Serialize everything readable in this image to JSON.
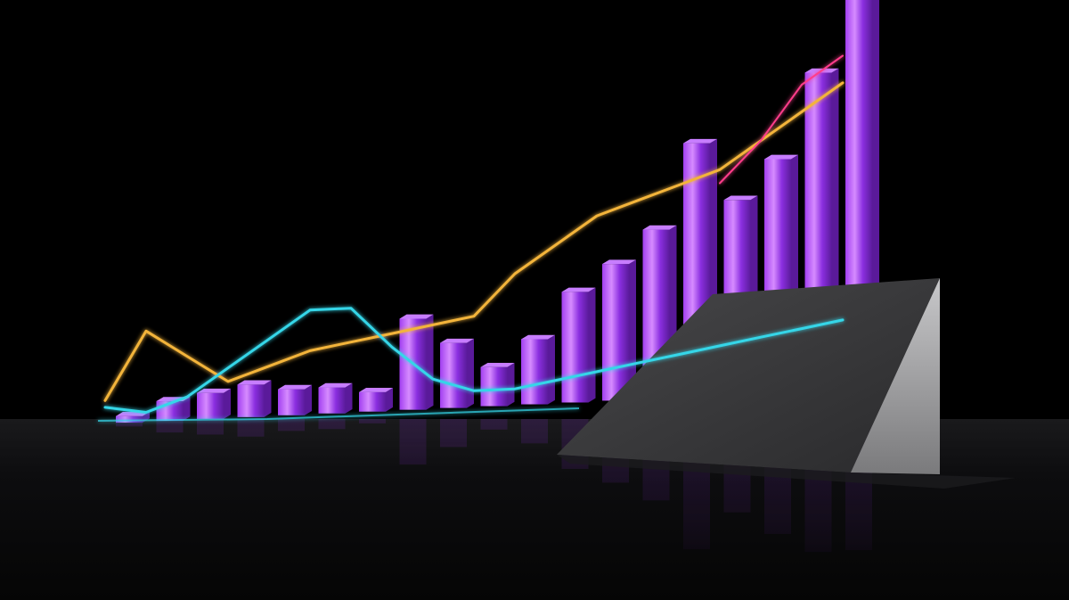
{
  "colors": {
    "background": "#000000",
    "floor": "#0b0b0d",
    "bar_front": "#8a2fd6",
    "bar_highlight": "#d98cff",
    "bar_side": "#5a1a9a",
    "bar_top": "#c77dff",
    "line_yellow": "#f3b43a",
    "line_cyan": "#35d6e8",
    "line_pink": "#ff3c8a",
    "board_front": "#3a3a3c",
    "board_side": "#9a9a9c"
  },
  "chart_data": {
    "type": "bar",
    "bar_values": [
      1,
      3,
      4,
      5,
      4,
      4,
      3,
      14,
      10,
      6,
      10,
      17,
      21,
      26,
      39,
      30,
      36,
      49,
      61
    ],
    "series": [
      {
        "values": [
          2,
          12,
          8,
          4,
          6,
          8,
          9,
          10,
          11,
          12,
          18,
          22,
          26,
          28,
          30,
          32,
          36,
          40,
          44
        ]
      },
      {
        "values": [
          1,
          0,
          2,
          6,
          10,
          14,
          14,
          8,
          3,
          1,
          1,
          2,
          3,
          4,
          5,
          6,
          7,
          8,
          9
        ]
      },
      {
        "values": [
          null,
          null,
          null,
          null,
          null,
          null,
          null,
          null,
          null,
          null,
          null,
          null,
          null,
          null,
          null,
          30,
          36,
          44,
          48
        ]
      }
    ]
  }
}
